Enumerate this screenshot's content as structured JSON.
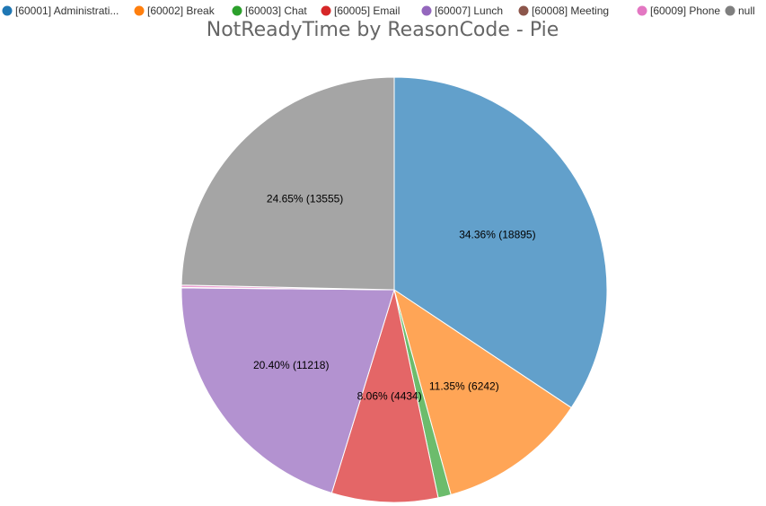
{
  "chart_data": {
    "type": "pie",
    "title": "NotReadyTime by ReasonCode - Pie",
    "legend_position": "top",
    "start_angle_deg": 0,
    "direction": "clockwise",
    "slices": [
      {
        "name": "[60001] Administrati...",
        "value": 18895,
        "label": "34.36% (18895)",
        "color": "#62a0cb",
        "legend_color": "#1f77b4"
      },
      {
        "name": "[60002] Break",
        "value": 6242,
        "label": "11.35% (6242)",
        "color": "#ffa556",
        "legend_color": "#ff7f0e"
      },
      {
        "name": "[60003] Chat",
        "value": 540,
        "label": "",
        "color": "#6cbc6c",
        "legend_color": "#2ca02c"
      },
      {
        "name": "[60005] Email",
        "value": 4434,
        "label": "8.06% (4434)",
        "color": "#e46667",
        "legend_color": "#d62728"
      },
      {
        "name": "[60007] Lunch",
        "value": 11218,
        "label": "20.40% (11218)",
        "color": "#b392d0",
        "legend_color": "#9467bd"
      },
      {
        "name": "[60008] Meeting",
        "value": 15,
        "label": "",
        "color": "#a8786e",
        "legend_color": "#8c564b"
      },
      {
        "name": "[60009] Phone",
        "value": 100,
        "label": "",
        "color": "#ec9fd2",
        "legend_color": "#e377c2"
      },
      {
        "name": "null",
        "value": 13555,
        "label": "24.65% (13555)",
        "color": "#a5a5a5",
        "legend_color": "#7f7f7f"
      }
    ]
  }
}
